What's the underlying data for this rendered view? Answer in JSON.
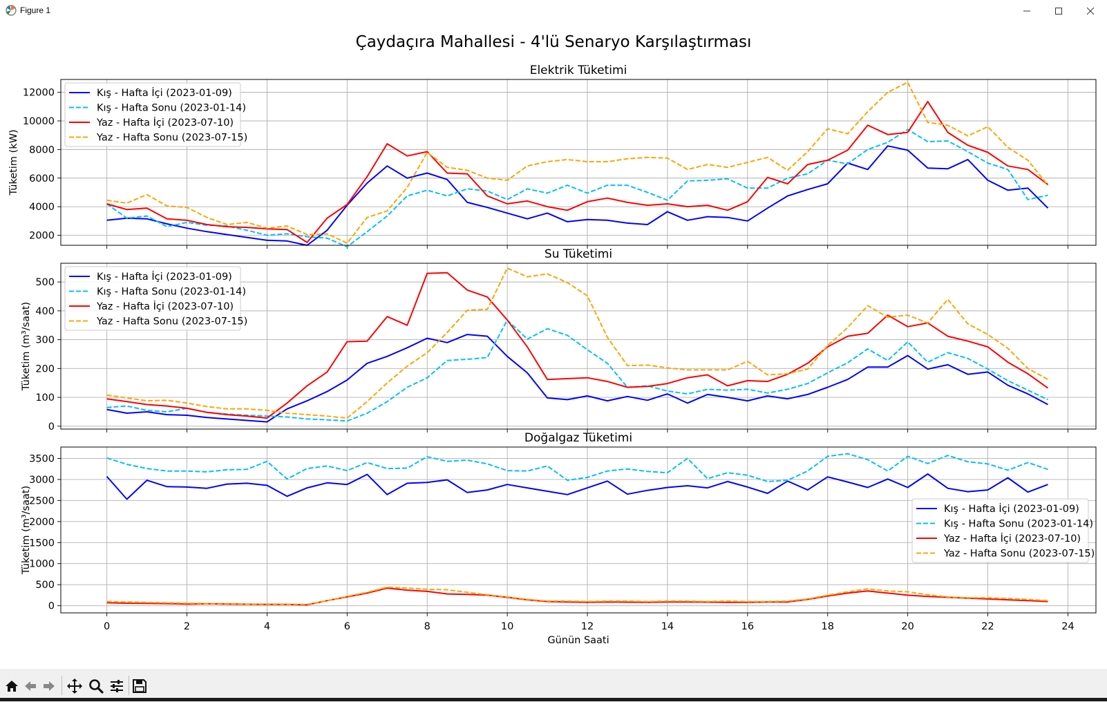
{
  "window": {
    "title": "Figure 1"
  },
  "figure_title": "Çaydaçıra Mahallesi - 4'lü Senaryo Karşılaştırması",
  "toolbar": {
    "icons": [
      "home-icon",
      "back-arrow-icon",
      "forward-arrow-icon",
      "pan-icon",
      "zoom-icon",
      "configure-subplots-icon",
      "save-icon"
    ]
  },
  "legend_labels": [
    "Kış - Hafta İçi (2023-01-09)",
    "Kış - Hafta Sonu (2023-01-14)",
    "Yaz - Hafta İçi (2023-07-10)",
    "Yaz - Hafta Sonu (2023-07-15)"
  ],
  "series_styles": [
    {
      "color": "#0000ff",
      "dash": "solid"
    },
    {
      "color": "#00bfff",
      "dash": "dashed"
    },
    {
      "color": "#ff0000",
      "dash": "solid"
    },
    {
      "color": "#ffa500",
      "dash": "dashed"
    }
  ],
  "chart_data": [
    {
      "type": "line",
      "title": "Elektrik Tüketimi",
      "ylabel": "Tüketim (kW)",
      "xlabel": "",
      "xlim": [
        -1.15,
        24.7
      ],
      "ylim": [
        1300,
        12900
      ],
      "yticks": [
        2000,
        4000,
        6000,
        8000,
        10000,
        12000
      ],
      "xticks": [],
      "grid": true,
      "legend": "top-left",
      "x_start": 0,
      "x_step": 0.5,
      "series": [
        {
          "name": "Kış - Hafta İçi (2023-01-09)",
          "values": [
            3050,
            3200,
            3150,
            2800,
            2500,
            2250,
            2050,
            1850,
            1650,
            1600,
            1300,
            2350,
            4100,
            5650,
            6850,
            6000,
            6350,
            5900,
            4300,
            3950,
            3550,
            3150,
            3550,
            2950,
            3100,
            3050,
            2850,
            2750,
            3650,
            3050,
            3300,
            3250,
            3000,
            3900,
            4750,
            5200,
            5600,
            7050,
            6600,
            8250,
            7950,
            6700,
            6650,
            7300,
            5850,
            5150,
            5300,
            3900
          ]
        },
        {
          "name": "Kış - Hafta Sonu (2023-01-14)",
          "values": [
            4200,
            3200,
            3350,
            2600,
            2900,
            2700,
            2650,
            2350,
            2000,
            2100,
            1900,
            1800,
            1200,
            2250,
            3350,
            4750,
            5150,
            4750,
            5250,
            5100,
            4500,
            5250,
            4950,
            5500,
            4950,
            5500,
            5500,
            5000,
            4450,
            5800,
            5850,
            5950,
            5300,
            5300,
            6000,
            6300,
            7250,
            7000,
            8000,
            8500,
            9400,
            8550,
            8600,
            7850,
            7050,
            6600,
            4500,
            4800
          ]
        },
        {
          "name": "Yaz - Hafta İçi (2023-07-10)",
          "values": [
            4200,
            3800,
            3900,
            3150,
            3050,
            2750,
            2600,
            2550,
            2450,
            2400,
            1500,
            3200,
            4150,
            6100,
            8400,
            7550,
            7850,
            6350,
            6300,
            4750,
            4200,
            4400,
            4000,
            3750,
            4350,
            4600,
            4300,
            4100,
            4200,
            4000,
            4100,
            3750,
            4350,
            6050,
            5600,
            6950,
            7250,
            7950,
            9700,
            9050,
            9200,
            11350,
            9200,
            8300,
            7800,
            6850,
            6600,
            5550
          ]
        },
        {
          "name": "Yaz - Hafta Sonu (2023-07-15)",
          "values": [
            4450,
            4250,
            4850,
            4050,
            3950,
            3250,
            2750,
            2900,
            2500,
            2650,
            2050,
            2100,
            1450,
            3250,
            3700,
            5350,
            7800,
            6750,
            6550,
            6000,
            5850,
            6850,
            7150,
            7300,
            7150,
            7150,
            7350,
            7450,
            7400,
            6600,
            6950,
            6750,
            7100,
            7450,
            6550,
            7850,
            9450,
            9100,
            10650,
            12000,
            12700,
            9900,
            9700,
            8950,
            9600,
            8150,
            7250,
            5500
          ]
        }
      ]
    },
    {
      "type": "line",
      "title": "Su Tüketimi",
      "ylabel": "Tüketim (m³/saat)",
      "xlabel": "",
      "xlim": [
        -1.15,
        24.7
      ],
      "ylim": [
        -10,
        565
      ],
      "yticks": [
        0,
        100,
        200,
        300,
        400,
        500
      ],
      "xticks": [],
      "grid": true,
      "legend": "top-left",
      "x_start": 0,
      "x_step": 0.5,
      "series": [
        {
          "name": "Kış - Hafta İçi (2023-01-09)",
          "values": [
            58,
            45,
            50,
            40,
            38,
            30,
            25,
            20,
            15,
            60,
            88,
            120,
            160,
            218,
            242,
            272,
            305,
            290,
            318,
            312,
            242,
            185,
            98,
            92,
            105,
            88,
            103,
            90,
            112,
            80,
            110,
            100,
            88,
            105,
            95,
            110,
            135,
            162,
            205,
            205,
            245,
            198,
            213,
            180,
            188,
            142,
            112,
            75
          ]
        },
        {
          "name": "Kış - Hafta Sonu (2023-01-14)",
          "values": [
            65,
            70,
            55,
            50,
            62,
            48,
            42,
            38,
            35,
            32,
            25,
            22,
            18,
            45,
            85,
            135,
            168,
            228,
            232,
            238,
            368,
            302,
            338,
            315,
            265,
            218,
            135,
            140,
            122,
            112,
            128,
            125,
            128,
            115,
            128,
            148,
            185,
            220,
            268,
            228,
            292,
            222,
            255,
            235,
            198,
            158,
            125,
            92
          ]
        },
        {
          "name": "Yaz - Hafta İçi (2023-07-10)",
          "values": [
            95,
            85,
            75,
            70,
            62,
            48,
            40,
            35,
            28,
            80,
            140,
            188,
            293,
            295,
            380,
            350,
            530,
            532,
            472,
            448,
            368,
            275,
            162,
            165,
            168,
            155,
            135,
            138,
            148,
            168,
            178,
            140,
            158,
            155,
            180,
            218,
            275,
            312,
            322,
            385,
            345,
            358,
            312,
            295,
            275,
            222,
            182,
            132
          ]
        },
        {
          "name": "Yaz - Hafta Sonu (2023-07-15)",
          "values": [
            108,
            98,
            88,
            90,
            80,
            68,
            60,
            60,
            55,
            45,
            40,
            35,
            28,
            85,
            150,
            208,
            255,
            325,
            402,
            405,
            548,
            518,
            528,
            498,
            452,
            308,
            210,
            212,
            202,
            195,
            195,
            195,
            225,
            178,
            182,
            198,
            280,
            342,
            418,
            378,
            385,
            358,
            440,
            355,
            318,
            270,
            200,
            162
          ]
        }
      ]
    },
    {
      "type": "line",
      "title": "Doğalgaz Tüketimi",
      "ylabel": "Tüketim (m³/saat)",
      "xlabel": "Günün Saati",
      "xlim": [
        -1.15,
        24.7
      ],
      "ylim": [
        -170,
        3770
      ],
      "yticks": [
        0,
        500,
        1000,
        1500,
        2000,
        2500,
        3000,
        3500
      ],
      "xticks": [
        0,
        2,
        4,
        6,
        8,
        10,
        12,
        14,
        16,
        18,
        20,
        22,
        24
      ],
      "grid": true,
      "legend": "center-right",
      "x_start": 0,
      "x_step": 0.5,
      "series": [
        {
          "name": "Kış - Hafta İçi (2023-01-09)",
          "values": [
            3070,
            2530,
            2980,
            2830,
            2820,
            2790,
            2890,
            2910,
            2860,
            2600,
            2800,
            2920,
            2880,
            3120,
            2640,
            2910,
            2930,
            2990,
            2690,
            2750,
            2880,
            2800,
            2720,
            2640,
            2800,
            2960,
            2650,
            2740,
            2810,
            2850,
            2800,
            2950,
            2820,
            2670,
            2960,
            2750,
            3060,
            2940,
            2810,
            3010,
            2810,
            3130,
            2790,
            2710,
            2750,
            3040,
            2700,
            2880
          ]
        },
        {
          "name": "Kış - Hafta Sonu (2023-01-14)",
          "values": [
            3510,
            3360,
            3260,
            3200,
            3200,
            3180,
            3230,
            3240,
            3430,
            3010,
            3260,
            3320,
            3210,
            3400,
            3260,
            3270,
            3540,
            3430,
            3460,
            3370,
            3210,
            3200,
            3320,
            2980,
            3050,
            3200,
            3250,
            3190,
            3160,
            3500,
            3020,
            3160,
            3100,
            2950,
            2980,
            3200,
            3550,
            3610,
            3470,
            3200,
            3550,
            3380,
            3570,
            3420,
            3370,
            3220,
            3400,
            3240
          ]
        },
        {
          "name": "Yaz - Hafta İçi (2023-07-10)",
          "values": [
            70,
            60,
            55,
            50,
            40,
            45,
            40,
            35,
            30,
            30,
            20,
            120,
            210,
            300,
            420,
            370,
            340,
            280,
            270,
            250,
            200,
            140,
            100,
            90,
            80,
            90,
            85,
            80,
            90,
            90,
            85,
            80,
            80,
            90,
            90,
            150,
            230,
            300,
            350,
            300,
            250,
            220,
            200,
            180,
            160,
            140,
            120,
            100
          ]
        },
        {
          "name": "Yaz - Hafta Sonu (2023-07-15)",
          "values": [
            100,
            90,
            80,
            70,
            60,
            50,
            50,
            40,
            40,
            35,
            30,
            120,
            220,
            320,
            440,
            420,
            390,
            380,
            320,
            260,
            210,
            150,
            110,
            110,
            100,
            110,
            110,
            100,
            110,
            110,
            100,
            110,
            100,
            100,
            110,
            160,
            250,
            330,
            400,
            350,
            330,
            260,
            210,
            190,
            190,
            170,
            150,
            120
          ]
        }
      ]
    }
  ]
}
